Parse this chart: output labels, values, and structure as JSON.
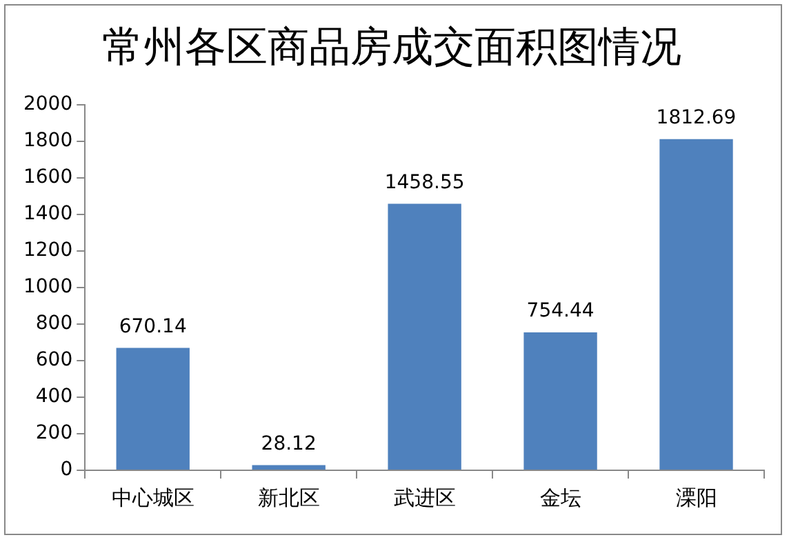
{
  "chart_data": {
    "type": "bar",
    "title": "常州各区商品房成交面积图情况",
    "categories": [
      "中心城区",
      "新北区",
      "武进区",
      "金坛",
      "溧阳"
    ],
    "values": [
      670.14,
      28.12,
      1458.55,
      754.44,
      1812.69
    ],
    "color": "#4f81bd",
    "ylim": [
      0,
      2000
    ],
    "yticks": [
      0,
      200,
      400,
      600,
      800,
      1000,
      1200,
      1400,
      1600,
      1800,
      2000
    ],
    "grid": false,
    "legend": false,
    "data_labels": true
  }
}
